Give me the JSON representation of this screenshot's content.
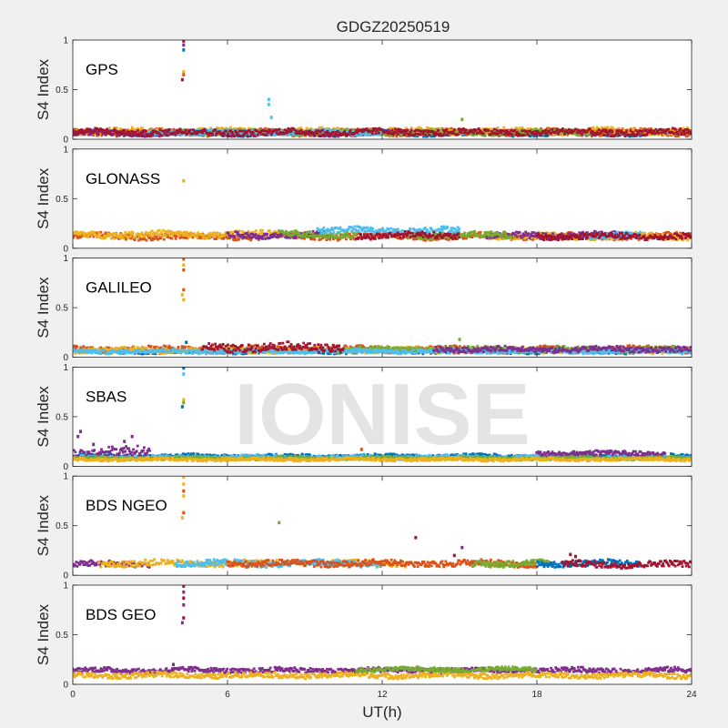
{
  "figure": {
    "title": "GDGZ20250519",
    "xlabel": "UT(h)",
    "watermark": "IONISE"
  },
  "chart_data": {
    "type": "scatter",
    "x_range": [
      0,
      24
    ],
    "x_ticks": [
      0,
      6,
      12,
      18,
      24
    ],
    "x_tick_labels": [
      "0",
      "6",
      "12",
      "18",
      "24"
    ],
    "grid": false,
    "legend": "none",
    "panels": [
      {
        "label": "GPS",
        "ylabel": "S4 Index",
        "ylim": [
          0,
          1
        ],
        "y_ticks": [
          0,
          0.5,
          1
        ],
        "y_tick_labels": [
          "0",
          "0.5",
          "1"
        ],
        "series": [
          {
            "color": "#0072bd",
            "segments": [
              {
                "x0": 0,
                "x1": 24,
                "base": 0.06,
                "noise": 0.025
              }
            ]
          },
          {
            "color": "#d95319",
            "segments": [
              {
                "x0": 0,
                "x1": 24,
                "base": 0.07,
                "noise": 0.03
              }
            ]
          },
          {
            "color": "#edb120",
            "segments": [
              {
                "x0": 0,
                "x1": 24,
                "base": 0.08,
                "noise": 0.03
              }
            ]
          },
          {
            "color": "#7e2f8e",
            "segments": [
              {
                "x0": 0,
                "x1": 13,
                "base": 0.06,
                "noise": 0.025
              }
            ]
          },
          {
            "color": "#77ac30",
            "segments": [
              {
                "x0": 4,
                "x1": 20,
                "base": 0.07,
                "noise": 0.025
              }
            ]
          },
          {
            "color": "#4dbeee",
            "segments": [
              {
                "x0": 3,
                "x1": 12,
                "base": 0.07,
                "noise": 0.025
              }
            ]
          },
          {
            "color": "#a2142f",
            "segments": [
              {
                "x0": 0,
                "x1": 24,
                "base": 0.07,
                "noise": 0.03
              }
            ]
          }
        ],
        "spikes": [
          {
            "x": 4.3,
            "y": 0.99,
            "color": "#a2142f"
          },
          {
            "x": 4.3,
            "y": 0.95,
            "color": "#7e2f8e"
          },
          {
            "x": 4.3,
            "y": 0.9,
            "color": "#0072bd"
          },
          {
            "x": 4.3,
            "y": 0.68,
            "color": "#edb120"
          },
          {
            "x": 4.3,
            "y": 0.65,
            "color": "#d95319"
          },
          {
            "x": 4.25,
            "y": 0.6,
            "color": "#a2142f"
          },
          {
            "x": 7.6,
            "y": 0.4,
            "color": "#4dbeee"
          },
          {
            "x": 7.6,
            "y": 0.35,
            "color": "#4dbeee"
          },
          {
            "x": 7.7,
            "y": 0.22,
            "color": "#4dbeee"
          },
          {
            "x": 15.1,
            "y": 0.2,
            "color": "#77ac30"
          }
        ]
      },
      {
        "label": "GLONASS",
        "ylabel": "S4 Index",
        "ylim": [
          0,
          1
        ],
        "y_ticks": [
          0,
          0.5,
          1
        ],
        "y_tick_labels": [
          "0",
          "0.5",
          "1"
        ],
        "series": [
          {
            "color": "#d95319",
            "segments": [
              {
                "x0": 0,
                "x1": 24,
                "base": 0.12,
                "noise": 0.03
              }
            ]
          },
          {
            "color": "#edb120",
            "segments": [
              {
                "x0": 0,
                "x1": 8,
                "base": 0.14,
                "noise": 0.03
              },
              {
                "x0": 16,
                "x1": 24,
                "base": 0.12,
                "noise": 0.03
              }
            ]
          },
          {
            "color": "#7e2f8e",
            "segments": [
              {
                "x0": 6,
                "x1": 10,
                "base": 0.13,
                "noise": 0.03
              },
              {
                "x0": 16,
                "x1": 22,
                "base": 0.13,
                "noise": 0.03
              }
            ]
          },
          {
            "color": "#77ac30",
            "segments": [
              {
                "x0": 8,
                "x1": 11,
                "base": 0.14,
                "noise": 0.03
              },
              {
                "x0": 13,
                "x1": 17,
                "base": 0.13,
                "noise": 0.03
              }
            ]
          },
          {
            "color": "#4dbeee",
            "segments": [
              {
                "x0": 9.5,
                "x1": 15,
                "base": 0.18,
                "noise": 0.03
              },
              {
                "x0": 20,
                "x1": 22,
                "base": 0.13,
                "noise": 0.03
              }
            ]
          },
          {
            "color": "#a2142f",
            "segments": [
              {
                "x0": 11,
                "x1": 15,
                "base": 0.13,
                "noise": 0.03
              },
              {
                "x0": 18,
                "x1": 24,
                "base": 0.12,
                "noise": 0.03
              }
            ]
          }
        ],
        "spikes": [
          {
            "x": 4.3,
            "y": 0.68,
            "color": "#edb120"
          }
        ]
      },
      {
        "label": "GALILEO",
        "ylabel": "S4 Index",
        "ylim": [
          0,
          1
        ],
        "y_ticks": [
          0,
          0.5,
          1
        ],
        "y_tick_labels": [
          "0",
          "0.5",
          "1"
        ],
        "series": [
          {
            "color": "#0072bd",
            "segments": [
              {
                "x0": 0,
                "x1": 24,
                "base": 0.06,
                "noise": 0.02
              }
            ]
          },
          {
            "color": "#d95319",
            "segments": [
              {
                "x0": 0,
                "x1": 24,
                "base": 0.08,
                "noise": 0.03
              }
            ]
          },
          {
            "color": "#edb120",
            "segments": [
              {
                "x0": 0,
                "x1": 24,
                "base": 0.07,
                "noise": 0.025
              }
            ]
          },
          {
            "color": "#77ac30",
            "segments": [
              {
                "x0": 10,
                "x1": 24,
                "base": 0.08,
                "noise": 0.025
              }
            ]
          },
          {
            "color": "#4dbeee",
            "segments": [
              {
                "x0": 0,
                "x1": 24,
                "base": 0.06,
                "noise": 0.02
              }
            ]
          },
          {
            "color": "#7e2f8e",
            "segments": [
              {
                "x0": 14,
                "x1": 24,
                "base": 0.08,
                "noise": 0.025
              }
            ]
          },
          {
            "color": "#a2142f",
            "segments": [
              {
                "x0": 5,
                "x1": 10.5,
                "base": 0.1,
                "noise": 0.04
              }
            ]
          }
        ],
        "spikes": [
          {
            "x": 4.3,
            "y": 0.99,
            "color": "#d95319"
          },
          {
            "x": 4.3,
            "y": 0.93,
            "color": "#edb120"
          },
          {
            "x": 4.3,
            "y": 0.88,
            "color": "#d95319"
          },
          {
            "x": 4.3,
            "y": 0.68,
            "color": "#d95319"
          },
          {
            "x": 4.25,
            "y": 0.63,
            "color": "#edb120"
          },
          {
            "x": 4.3,
            "y": 0.58,
            "color": "#edb120"
          },
          {
            "x": 4.4,
            "y": 0.15,
            "color": "#0072bd"
          },
          {
            "x": 15.0,
            "y": 0.18,
            "color": "#77ac30"
          }
        ]
      },
      {
        "label": "SBAS",
        "ylabel": "S4 Index",
        "ylim": [
          0,
          1
        ],
        "y_ticks": [
          0,
          0.5,
          1
        ],
        "y_tick_labels": [
          "0",
          "0.5",
          "1"
        ],
        "series": [
          {
            "color": "#0072bd",
            "segments": [
              {
                "x0": 0,
                "x1": 24,
                "base": 0.1,
                "noise": 0.02
              }
            ]
          },
          {
            "color": "#4dbeee",
            "segments": [
              {
                "x0": 0,
                "x1": 24,
                "base": 0.09,
                "noise": 0.02
              }
            ]
          },
          {
            "color": "#7e2f8e",
            "segments": [
              {
                "x0": 0,
                "x1": 3,
                "base": 0.14,
                "noise": 0.05
              },
              {
                "x0": 18,
                "x1": 23,
                "base": 0.13,
                "noise": 0.025
              }
            ]
          },
          {
            "color": "#77ac30",
            "segments": [
              {
                "x0": 0,
                "x1": 24,
                "base": 0.08,
                "noise": 0.015
              }
            ]
          },
          {
            "color": "#edb120",
            "segments": [
              {
                "x0": 0,
                "x1": 24,
                "base": 0.07,
                "noise": 0.015
              }
            ]
          }
        ],
        "spikes": [
          {
            "x": 4.3,
            "y": 0.99,
            "color": "#0072bd"
          },
          {
            "x": 4.3,
            "y": 0.93,
            "color": "#4dbeee"
          },
          {
            "x": 4.3,
            "y": 0.67,
            "color": "#edb120"
          },
          {
            "x": 4.3,
            "y": 0.64,
            "color": "#77ac30"
          },
          {
            "x": 4.25,
            "y": 0.6,
            "color": "#0072bd"
          },
          {
            "x": 0.3,
            "y": 0.35,
            "color": "#7e2f8e"
          },
          {
            "x": 0.2,
            "y": 0.3,
            "color": "#7e2f8e"
          },
          {
            "x": 0.8,
            "y": 0.22,
            "color": "#7e2f8e"
          },
          {
            "x": 2.3,
            "y": 0.3,
            "color": "#7e2f8e"
          },
          {
            "x": 2.0,
            "y": 0.25,
            "color": "#7e2f8e"
          },
          {
            "x": 11.2,
            "y": 0.17,
            "color": "#d95319"
          }
        ]
      },
      {
        "label": "BDS NGEO",
        "ylabel": "S4 Index",
        "ylim": [
          0,
          1
        ],
        "y_ticks": [
          0,
          0.5,
          1
        ],
        "y_tick_labels": [
          "0",
          "0.5",
          "1"
        ],
        "series": [
          {
            "color": "#7e2f8e",
            "segments": [
              {
                "x0": 0,
                "x1": 3,
                "base": 0.11,
                "noise": 0.03
              }
            ]
          },
          {
            "color": "#edb120",
            "segments": [
              {
                "x0": 1,
                "x1": 8,
                "base": 0.12,
                "noise": 0.03
              },
              {
                "x0": 10,
                "x1": 13,
                "base": 0.12,
                "noise": 0.03
              }
            ]
          },
          {
            "color": "#4dbeee",
            "segments": [
              {
                "x0": 4,
                "x1": 12,
                "base": 0.12,
                "noise": 0.03
              }
            ]
          },
          {
            "color": "#d95319",
            "segments": [
              {
                "x0": 6,
                "x1": 18,
                "base": 0.12,
                "noise": 0.03
              }
            ]
          },
          {
            "color": "#77ac30",
            "segments": [
              {
                "x0": 15.5,
                "x1": 18.5,
                "base": 0.12,
                "noise": 0.03
              }
            ]
          },
          {
            "color": "#0072bd",
            "segments": [
              {
                "x0": 18,
                "x1": 22,
                "base": 0.12,
                "noise": 0.03
              }
            ]
          },
          {
            "color": "#a2142f",
            "segments": [
              {
                "x0": 19,
                "x1": 24,
                "base": 0.11,
                "noise": 0.03
              }
            ]
          }
        ],
        "spikes": [
          {
            "x": 4.3,
            "y": 0.99,
            "color": "#edb120"
          },
          {
            "x": 4.3,
            "y": 0.92,
            "color": "#edb120"
          },
          {
            "x": 4.3,
            "y": 0.85,
            "color": "#d95319"
          },
          {
            "x": 4.3,
            "y": 0.8,
            "color": "#edb120"
          },
          {
            "x": 4.3,
            "y": 0.63,
            "color": "#d95319"
          },
          {
            "x": 4.25,
            "y": 0.58,
            "color": "#edb120"
          },
          {
            "x": 8.0,
            "y": 0.53,
            "color": "#77ac30"
          },
          {
            "x": 13.3,
            "y": 0.38,
            "color": "#a2142f"
          },
          {
            "x": 15.1,
            "y": 0.28,
            "color": "#7e2f8e"
          },
          {
            "x": 14.8,
            "y": 0.2,
            "color": "#a2142f"
          },
          {
            "x": 19.3,
            "y": 0.21,
            "color": "#a2142f"
          },
          {
            "x": 19.5,
            "y": 0.19,
            "color": "#a2142f"
          }
        ]
      },
      {
        "label": "BDS GEO",
        "ylabel": "S4 Index",
        "ylim": [
          0,
          1
        ],
        "y_ticks": [
          0,
          0.5,
          1
        ],
        "y_tick_labels": [
          "0",
          "0.5",
          "1"
        ],
        "series": [
          {
            "color": "#7e2f8e",
            "segments": [
              {
                "x0": 0,
                "x1": 24,
                "base": 0.14,
                "noise": 0.025
              }
            ]
          },
          {
            "color": "#edb120",
            "segments": [
              {
                "x0": 0,
                "x1": 24,
                "base": 0.09,
                "noise": 0.025
              }
            ]
          },
          {
            "color": "#77ac30",
            "segments": [
              {
                "x0": 11,
                "x1": 18,
                "base": 0.15,
                "noise": 0.02
              }
            ]
          }
        ],
        "spikes": [
          {
            "x": 4.3,
            "y": 0.99,
            "color": "#a2142f"
          },
          {
            "x": 4.3,
            "y": 0.93,
            "color": "#7e2f8e"
          },
          {
            "x": 4.3,
            "y": 0.87,
            "color": "#a2142f"
          },
          {
            "x": 4.3,
            "y": 0.8,
            "color": "#7e2f8e"
          },
          {
            "x": 4.3,
            "y": 0.67,
            "color": "#a2142f"
          },
          {
            "x": 4.25,
            "y": 0.62,
            "color": "#7e2f8e"
          },
          {
            "x": 3.9,
            "y": 0.2,
            "color": "#7e2f8e"
          }
        ]
      }
    ]
  }
}
